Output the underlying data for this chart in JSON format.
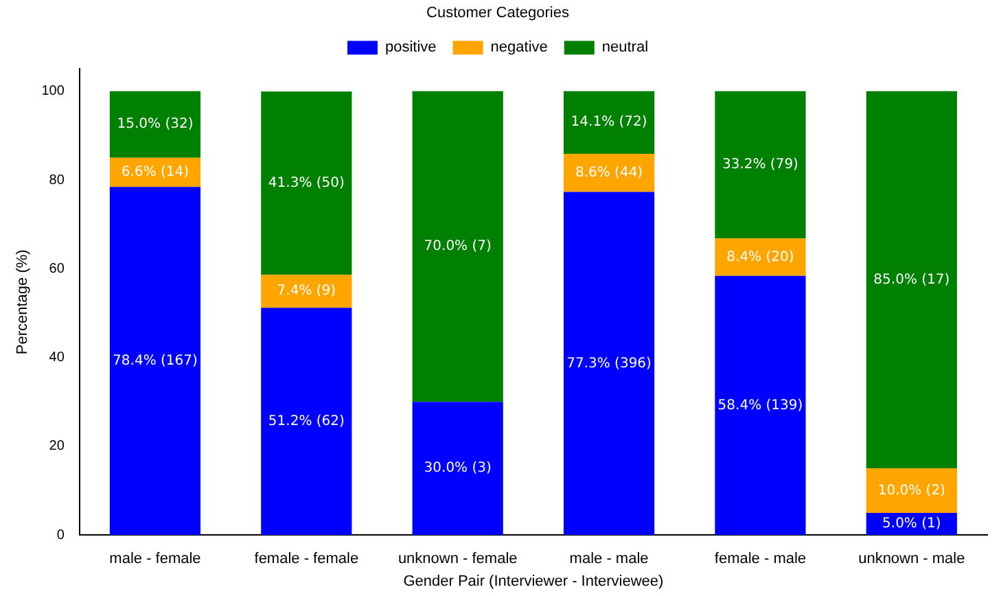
{
  "chart_data": {
    "type": "bar",
    "stacked": true,
    "xlabel": "Gender Pair (Interviewer - Interviewee)",
    "ylabel": "Percentage (%)",
    "legend_title": "Customer Categories",
    "legend": "top",
    "grid": false,
    "categories": [
      "male - female",
      "female - female",
      "unknown - female",
      "male - male",
      "female - male",
      "unknown - male"
    ],
    "ylim": [
      0,
      105
    ],
    "yticks": [
      0,
      20,
      40,
      60,
      80,
      100
    ],
    "series": [
      {
        "name": "positive",
        "color": "#0000ff",
        "values": [
          78.4,
          51.2,
          30.0,
          77.3,
          58.4,
          5.0
        ],
        "value_labels": [
          "78.4% (167)",
          "51.2% (62)",
          "30.0% (3)",
          "77.3% (396)",
          "58.4% (139)",
          "5.0% (1)"
        ]
      },
      {
        "name": "negative",
        "color": "#ffa500",
        "values": [
          6.6,
          7.4,
          0,
          8.6,
          8.4,
          10.0
        ],
        "value_labels": [
          "6.6% (14)",
          "7.4% (9)",
          null,
          "8.6% (44)",
          "8.4% (20)",
          "10.0% (2)"
        ]
      },
      {
        "name": "neutral",
        "color": "#008000",
        "values": [
          15.0,
          41.3,
          70.0,
          14.1,
          33.2,
          85.0
        ],
        "value_labels": [
          "15.0% (32)",
          "41.3% (50)",
          "70.0% (7)",
          "14.1% (72)",
          "33.2% (79)",
          "85.0% (17)"
        ]
      }
    ]
  }
}
